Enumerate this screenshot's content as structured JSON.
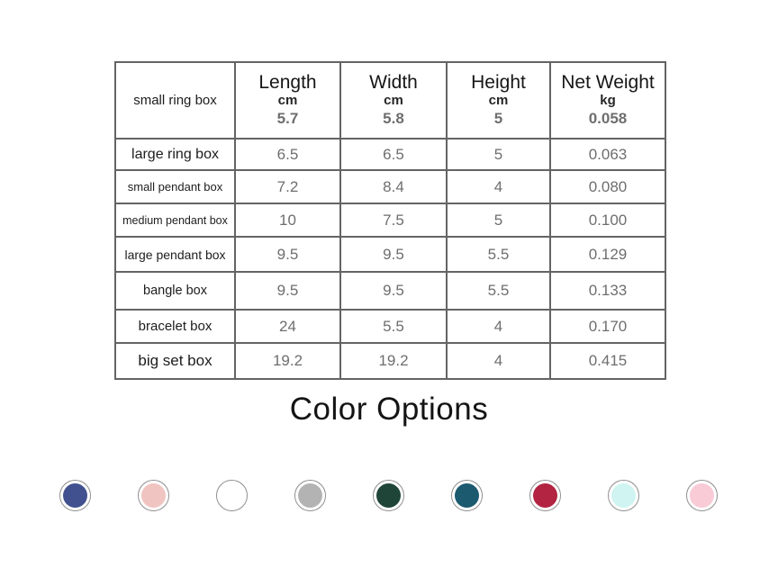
{
  "chart_data": {
    "type": "table",
    "header": {
      "product": "small ring box",
      "columns": [
        {
          "label": "Length",
          "unit": "cm",
          "value": "5.7"
        },
        {
          "label": "Width",
          "unit": "cm",
          "value": "5.8"
        },
        {
          "label": "Height",
          "unit": "cm",
          "value": "5"
        },
        {
          "label": "Net Weight",
          "unit": "kg",
          "value": "0.058"
        }
      ]
    },
    "rows": [
      {
        "product": "large ring box",
        "values": [
          "6.5",
          "6.5",
          "5",
          "0.063"
        ]
      },
      {
        "product": "small pendant box",
        "values": [
          "7.2",
          "8.4",
          "4",
          "0.080"
        ]
      },
      {
        "product": "medium pendant box",
        "values": [
          "10",
          "7.5",
          "5",
          "0.100"
        ]
      },
      {
        "product": "large pendant box",
        "values": [
          "9.5",
          "9.5",
          "5.5",
          "0.129"
        ]
      },
      {
        "product": "bangle box",
        "values": [
          "9.5",
          "9.5",
          "5.5",
          "0.133"
        ]
      },
      {
        "product": "bracelet box",
        "values": [
          "24",
          "5.5",
          "4",
          "0.170"
        ]
      },
      {
        "product": "big set box",
        "values": [
          "19.2",
          "19.2",
          "4",
          "0.415"
        ]
      }
    ]
  },
  "color_options": {
    "title": "Color Options",
    "swatches": [
      {
        "name": "navy-blue",
        "hex": "#41518f"
      },
      {
        "name": "blush-pink",
        "hex": "#f0c4c0"
      },
      {
        "name": "white",
        "hex": "#ffffff"
      },
      {
        "name": "gray",
        "hex": "#b3b3b3"
      },
      {
        "name": "dark-green",
        "hex": "#1f4538"
      },
      {
        "name": "teal",
        "hex": "#1c5a70"
      },
      {
        "name": "crimson-red",
        "hex": "#b22441"
      },
      {
        "name": "light-cyan",
        "hex": "#cff4f1"
      },
      {
        "name": "light-pink",
        "hex": "#f8cbd6"
      }
    ]
  }
}
